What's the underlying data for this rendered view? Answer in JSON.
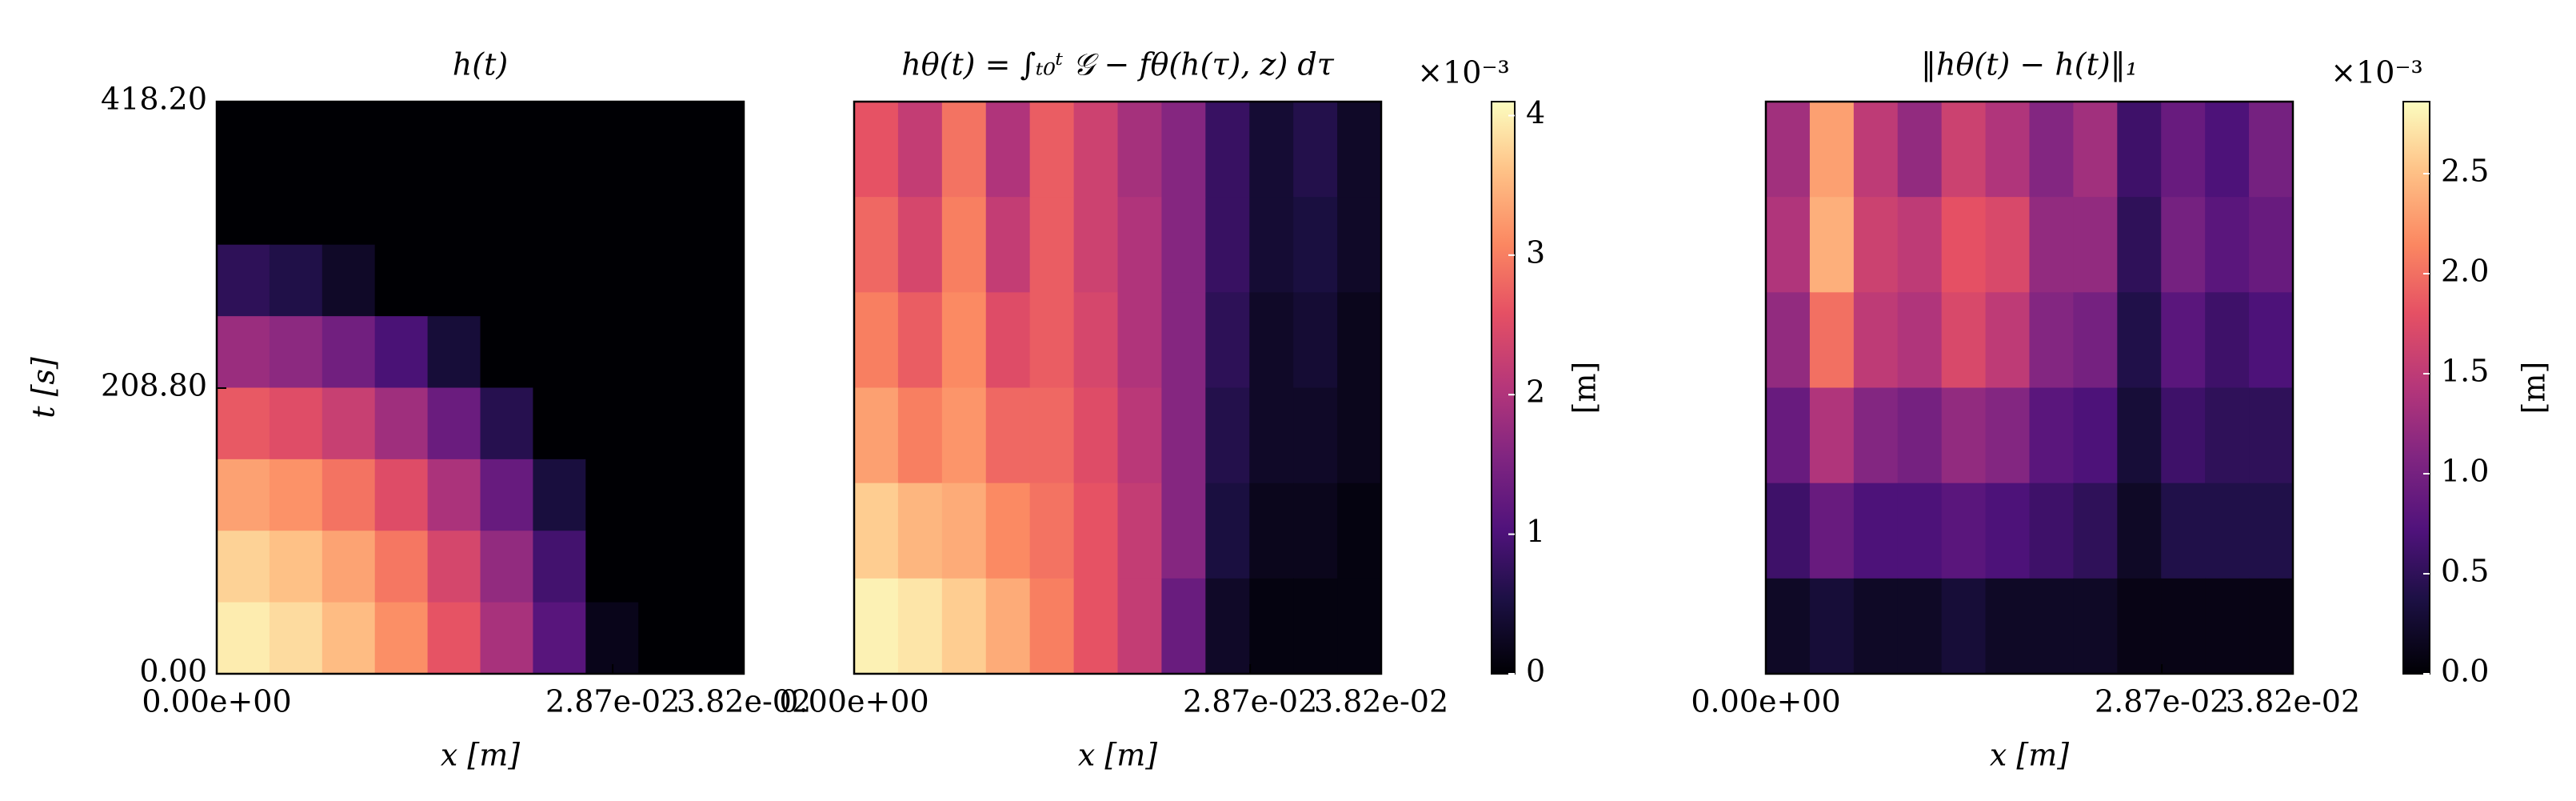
{
  "chart_data": [
    {
      "type": "heatmap",
      "title": "h(t)",
      "xlabel": "x [m]",
      "ylabel": "t [s]",
      "xlim": [
        0,
        0.0382
      ],
      "xticks": [
        {
          "value": 0,
          "label": "0.00e+00"
        },
        {
          "value": 0.0287,
          "label": "2.87e-02"
        },
        {
          "value": 0.0382,
          "label": "3.82e-02"
        }
      ],
      "ylim": [
        0,
        418.2
      ],
      "yticks": [
        {
          "value": 0,
          "label": "0.00"
        },
        {
          "value": 208.8,
          "label": "208.80"
        },
        {
          "value": 418.2,
          "label": "418.20"
        }
      ],
      "clim": [
        0,
        4.1
      ],
      "colormap": "magma",
      "z": [
        [
          0,
          0,
          0,
          0,
          0,
          0,
          0,
          0,
          0,
          0
        ],
        [
          0,
          0,
          0,
          0,
          0,
          0,
          0,
          0,
          0,
          0
        ],
        [
          0.71,
          0.57,
          0.3,
          0,
          0,
          0,
          0,
          0,
          0,
          0
        ],
        [
          1.79,
          1.66,
          1.39,
          0.98,
          0.44,
          0,
          0,
          0,
          0,
          0
        ],
        [
          2.66,
          2.52,
          2.25,
          1.84,
          1.31,
          0.63,
          0,
          0,
          0,
          0
        ],
        [
          3.31,
          3.17,
          2.9,
          2.5,
          1.96,
          1.28,
          0.48,
          0,
          0,
          0
        ],
        [
          3.74,
          3.6,
          3.33,
          2.93,
          2.39,
          1.72,
          0.91,
          0,
          0,
          0
        ],
        [
          3.96,
          3.82,
          3.55,
          3.15,
          2.61,
          1.93,
          1.12,
          0.18,
          0,
          0
        ]
      ]
    },
    {
      "type": "heatmap",
      "title": "hθ(t) = ∫ₜ₀ᵗ 𝒢 − fθ(h(τ), z) dτ",
      "xlabel": "x [m]",
      "xlim": [
        0,
        0.0382
      ],
      "xticks": [
        {
          "value": 0,
          "label": "0.00e+00"
        },
        {
          "value": 0.0287,
          "label": "2.87e-02"
        },
        {
          "value": 0.0382,
          "label": "3.82e-02"
        }
      ],
      "clim": [
        0,
        4.1
      ],
      "colormap": "magma",
      "colorbar": {
        "label": "[m]",
        "offset": "×10⁻³",
        "ticks": [
          0,
          1,
          2,
          3,
          4
        ]
      },
      "z": [
        [
          2.6,
          2.2,
          2.9,
          2.0,
          2.7,
          2.3,
          1.9,
          1.6,
          0.8,
          0.4,
          0.6,
          0.3
        ],
        [
          2.8,
          2.4,
          3.0,
          2.2,
          2.7,
          2.3,
          2.0,
          1.6,
          0.8,
          0.4,
          0.5,
          0.3
        ],
        [
          3.0,
          2.7,
          3.1,
          2.5,
          2.7,
          2.4,
          2.0,
          1.6,
          0.7,
          0.3,
          0.4,
          0.2
        ],
        [
          3.3,
          3.0,
          3.2,
          2.8,
          2.8,
          2.5,
          2.1,
          1.6,
          0.6,
          0.3,
          0.3,
          0.2
        ],
        [
          3.7,
          3.5,
          3.4,
          3.1,
          2.9,
          2.6,
          2.2,
          1.6,
          0.5,
          0.2,
          0.2,
          0.1
        ],
        [
          4.0,
          3.9,
          3.7,
          3.4,
          3.0,
          2.6,
          2.2,
          1.3,
          0.3,
          0.1,
          0.1,
          0.1
        ]
      ]
    },
    {
      "type": "heatmap",
      "title": "‖hθ(t) − h(t)‖₁",
      "xlabel": "x [m]",
      "xlim": [
        0,
        0.0382
      ],
      "xticks": [
        {
          "value": 0,
          "label": "0.00e+00"
        },
        {
          "value": 0.0287,
          "label": "2.87e-02"
        },
        {
          "value": 0.0382,
          "label": "3.82e-02"
        }
      ],
      "clim": [
        0,
        2.86
      ],
      "colormap": "magma",
      "colorbar": {
        "label": "[m]",
        "offset": "×10⁻³",
        "ticks": [
          {
            "value": 0,
            "label": "0.0"
          },
          0.5,
          {
            "value": 1,
            "label": "1.0"
          },
          1.5,
          {
            "value": 2,
            "label": "2.0"
          },
          2.5
        ]
      },
      "z": [
        [
          1.3,
          2.3,
          1.5,
          1.2,
          1.6,
          1.4,
          1.1,
          1.3,
          0.6,
          0.9,
          0.7,
          1.0
        ],
        [
          1.4,
          2.4,
          1.6,
          1.5,
          1.8,
          1.7,
          1.2,
          1.2,
          0.5,
          1.0,
          0.8,
          0.9
        ],
        [
          1.2,
          2.0,
          1.5,
          1.4,
          1.7,
          1.5,
          1.1,
          1.0,
          0.4,
          0.8,
          0.6,
          0.7
        ],
        [
          0.9,
          1.4,
          1.1,
          1.0,
          1.2,
          1.1,
          0.8,
          0.7,
          0.3,
          0.6,
          0.5,
          0.5
        ],
        [
          0.6,
          0.9,
          0.7,
          0.7,
          0.8,
          0.7,
          0.6,
          0.5,
          0.2,
          0.4,
          0.4,
          0.4
        ],
        [
          0.2,
          0.3,
          0.2,
          0.2,
          0.3,
          0.2,
          0.2,
          0.2,
          0.1,
          0.1,
          0.1,
          0.1
        ]
      ]
    }
  ]
}
